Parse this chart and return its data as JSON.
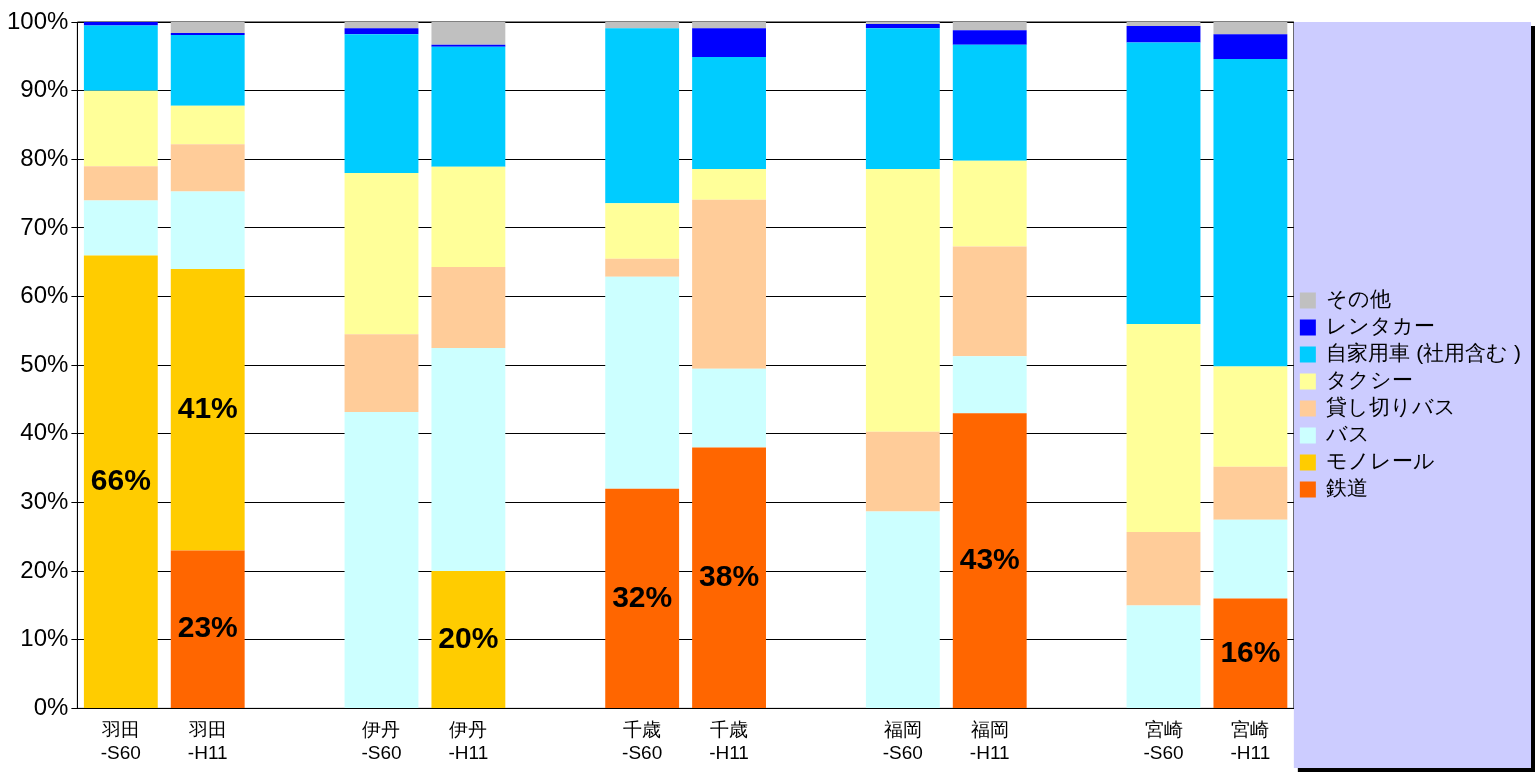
{
  "chart_data": {
    "type": "bar",
    "stacked": true,
    "categories": [
      "羽田 -S60",
      "羽田 -H11",
      null,
      "伊丹 -S60",
      "伊丹 -H11",
      null,
      "千歳 -S60",
      "千歳 -H11",
      null,
      "福岡 -S60",
      "福岡 -H11",
      null,
      "宮崎 -S60",
      "宮崎 -H11"
    ],
    "series": [
      {
        "name": "鉄道",
        "color": "#ff6600",
        "values": [
          0,
          23,
          null,
          0,
          0,
          null,
          32,
          38,
          null,
          0,
          43,
          null,
          0,
          16
        ],
        "value_labels": [
          null,
          "23%",
          null,
          null,
          null,
          null,
          "32%",
          "38%",
          null,
          null,
          "43%",
          null,
          null,
          "16%"
        ]
      },
      {
        "name": "モノレール",
        "color": "#ffcc00",
        "values": [
          66,
          41,
          null,
          0,
          20,
          null,
          0,
          0,
          null,
          0,
          0,
          null,
          0,
          0
        ],
        "value_labels": [
          "66%",
          "41%",
          null,
          null,
          "20%",
          null,
          null,
          null,
          null,
          null,
          null,
          null,
          null,
          null
        ]
      },
      {
        "name": "バス",
        "color": "#ccffff",
        "values": [
          8,
          11.3,
          null,
          43.2,
          32.5,
          null,
          30.9,
          11.5,
          null,
          28.7,
          8.3,
          null,
          15,
          11.5
        ]
      },
      {
        "name": "貸し切りバス",
        "color": "#ffcc99",
        "values": [
          5,
          6.9,
          null,
          11.3,
          11.8,
          null,
          2.6,
          24.6,
          null,
          11.6,
          16,
          null,
          10.7,
          7.7
        ]
      },
      {
        "name": "タクシー",
        "color": "#ffff99",
        "values": [
          11,
          5.6,
          null,
          23.5,
          14.6,
          null,
          8.1,
          4.5,
          null,
          38.3,
          12.5,
          null,
          30.3,
          14.6
        ]
      },
      {
        "name": "自家用車 (社用含む )",
        "color": "#00ccff",
        "values": [
          9.5,
          10.3,
          null,
          20.2,
          17.5,
          null,
          25.5,
          16.3,
          null,
          20.5,
          16.9,
          null,
          41,
          44.8
        ]
      },
      {
        "name": "レンタカー",
        "color": "#0000ff",
        "values": [
          0.5,
          0.3,
          null,
          0.9,
          0.3,
          null,
          0,
          4.2,
          null,
          0.6,
          2.1,
          null,
          2.4,
          3.6
        ]
      },
      {
        "name": "その他",
        "color": "#c0c0c0",
        "values": [
          null,
          1.6,
          null,
          0.9,
          3.3,
          null,
          0.9,
          0.9,
          null,
          0.3,
          1.2,
          null,
          0.6,
          1.8
        ]
      }
    ],
    "ylim": [
      0,
      100
    ],
    "yticks": [
      {
        "value": 0,
        "label": "0%"
      },
      {
        "value": 10,
        "label": "10%"
      },
      {
        "value": 20,
        "label": "20%"
      },
      {
        "value": 30,
        "label": "30%"
      },
      {
        "value": 40,
        "label": "40%"
      },
      {
        "value": 50,
        "label": "50%"
      },
      {
        "value": 60,
        "label": "60%"
      },
      {
        "value": 70,
        "label": "70%"
      },
      {
        "value": 80,
        "label": "80%"
      },
      {
        "value": 90,
        "label": "90%"
      },
      {
        "value": 100,
        "label": "100%"
      }
    ],
    "grid": "y",
    "legend": "right"
  }
}
